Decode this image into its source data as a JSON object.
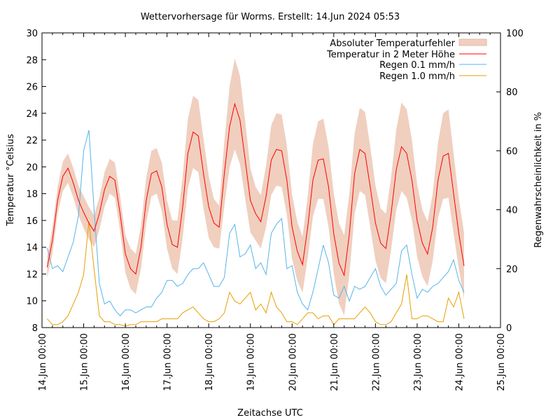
{
  "chart_data": {
    "type": "line",
    "title": "Wettervorhersage für Worms. Erstellt: 14.Jun 2024 05:53",
    "xlabel": "Zeitachse UTC",
    "ylabel": "Temperatur °Celsius",
    "y2label": "Regenwahrscheinlichkeit in %",
    "ylim": [
      8,
      30
    ],
    "y2lim": [
      0,
      100
    ],
    "yticks": [
      "8",
      "10",
      "12",
      "14",
      "16",
      "18",
      "20",
      "22",
      "24",
      "26",
      "28",
      "30"
    ],
    "y2ticks": [
      "0",
      "20",
      "40",
      "60",
      "80",
      "100"
    ],
    "xlim": [
      "2024-06-14T00:00",
      "2024-06-25T00:00"
    ],
    "xticks": [
      "14.Jun 00:00",
      "15.Jun 00:00",
      "16.Jun 00:00",
      "17.Jun 00:00",
      "18.Jun 00:00",
      "19.Jun 00:00",
      "20.Jun 00:00",
      "21.Jun 00:00",
      "22.Jun 00:00",
      "23.Jun 00:00",
      "24.Jun 00:00",
      "25.Jun 00:00"
    ],
    "legend_position": "top-right",
    "grid": false,
    "x": [
      "2024-06-14T03:00",
      "2024-06-14T06:00",
      "2024-06-14T09:00",
      "2024-06-14T12:00",
      "2024-06-14T15:00",
      "2024-06-14T18:00",
      "2024-06-14T21:00",
      "2024-06-15T00:00",
      "2024-06-15T03:00",
      "2024-06-15T06:00",
      "2024-06-15T09:00",
      "2024-06-15T12:00",
      "2024-06-15T15:00",
      "2024-06-15T18:00",
      "2024-06-15T21:00",
      "2024-06-16T00:00",
      "2024-06-16T03:00",
      "2024-06-16T06:00",
      "2024-06-16T09:00",
      "2024-06-16T12:00",
      "2024-06-16T15:00",
      "2024-06-16T18:00",
      "2024-06-16T21:00",
      "2024-06-17T00:00",
      "2024-06-17T03:00",
      "2024-06-17T06:00",
      "2024-06-17T09:00",
      "2024-06-17T12:00",
      "2024-06-17T15:00",
      "2024-06-17T18:00",
      "2024-06-17T21:00",
      "2024-06-18T00:00",
      "2024-06-18T03:00",
      "2024-06-18T06:00",
      "2024-06-18T09:00",
      "2024-06-18T12:00",
      "2024-06-18T15:00",
      "2024-06-18T18:00",
      "2024-06-18T21:00",
      "2024-06-19T00:00",
      "2024-06-19T03:00",
      "2024-06-19T06:00",
      "2024-06-19T09:00",
      "2024-06-19T12:00",
      "2024-06-19T15:00",
      "2024-06-19T18:00",
      "2024-06-19T21:00",
      "2024-06-20T00:00",
      "2024-06-20T03:00",
      "2024-06-20T06:00",
      "2024-06-20T09:00",
      "2024-06-20T12:00",
      "2024-06-20T15:00",
      "2024-06-20T18:00",
      "2024-06-20T21:00",
      "2024-06-21T00:00",
      "2024-06-21T03:00",
      "2024-06-21T06:00",
      "2024-06-21T09:00",
      "2024-06-21T12:00",
      "2024-06-21T15:00",
      "2024-06-21T18:00",
      "2024-06-21T21:00",
      "2024-06-22T00:00",
      "2024-06-22T03:00",
      "2024-06-22T06:00",
      "2024-06-22T09:00",
      "2024-06-22T12:00",
      "2024-06-22T15:00",
      "2024-06-22T18:00",
      "2024-06-22T21:00",
      "2024-06-23T00:00",
      "2024-06-23T03:00",
      "2024-06-23T06:00",
      "2024-06-23T09:00",
      "2024-06-23T12:00",
      "2024-06-23T15:00",
      "2024-06-23T18:00",
      "2024-06-23T21:00",
      "2024-06-24T00:00",
      "2024-06-24T03:00"
    ],
    "series": [
      {
        "name": "Absoluter Temperaturfehler",
        "kind": "band",
        "axis": "y",
        "color": "#f0cfbf",
        "values": [
          0.8,
          1.0,
          1.0,
          1.1,
          1.1,
          1.1,
          1.1,
          1.2,
          1.2,
          1.2,
          1.2,
          1.3,
          1.3,
          1.3,
          1.3,
          1.4,
          1.5,
          1.5,
          1.6,
          1.7,
          1.7,
          1.7,
          1.8,
          1.8,
          1.8,
          2.0,
          2.3,
          2.6,
          2.7,
          2.7,
          2.6,
          2.3,
          1.8,
          1.6,
          2.4,
          3.0,
          3.4,
          3.3,
          2.9,
          2.4,
          2.0,
          2.0,
          2.3,
          2.6,
          2.7,
          2.7,
          2.6,
          2.4,
          2.2,
          2.1,
          2.3,
          2.7,
          2.9,
          3.0,
          3.0,
          3.0,
          3.0,
          3.0,
          3.0,
          3.0,
          3.1,
          3.1,
          3.0,
          2.8,
          2.6,
          2.6,
          2.7,
          3.0,
          3.3,
          3.3,
          3.0,
          2.7,
          2.5,
          2.4,
          2.5,
          2.8,
          3.2,
          3.3,
          3.0,
          2.6,
          2.5
        ]
      },
      {
        "name": "Temperatur in 2 Meter Höhe",
        "axis": "y",
        "color": "#ff0000",
        "values": [
          12.5,
          14.5,
          17.5,
          19.3,
          19.9,
          18.8,
          17.5,
          16.6,
          15.8,
          15.2,
          16.5,
          18.3,
          19.3,
          19.0,
          16.5,
          13.5,
          12.4,
          12.0,
          14.0,
          17.5,
          19.5,
          19.7,
          18.5,
          15.7,
          14.2,
          14.0,
          17.0,
          21.0,
          22.6,
          22.3,
          19.5,
          17.0,
          15.8,
          15.5,
          19.5,
          23.0,
          24.7,
          23.5,
          20.5,
          17.5,
          16.5,
          15.9,
          17.8,
          20.5,
          21.3,
          21.2,
          19.0,
          15.5,
          13.7,
          12.7,
          15.5,
          19.0,
          20.5,
          20.6,
          18.5,
          15.0,
          12.8,
          11.9,
          15.0,
          19.5,
          21.3,
          21.0,
          18.5,
          15.8,
          14.3,
          13.9,
          16.5,
          19.8,
          21.5,
          21.0,
          19.0,
          16.0,
          14.3,
          13.5,
          15.5,
          19.0,
          20.8,
          21.0,
          18.0,
          15.0,
          12.6
        ]
      },
      {
        "name": "Regen 0.1 mm/h",
        "axis": "y2",
        "color": "#56b4e9",
        "values": [
          27,
          20,
          21,
          19,
          24,
          29,
          38,
          60,
          67,
          40,
          15,
          8,
          9,
          6,
          4,
          6,
          6,
          5,
          6,
          7,
          7,
          10,
          12,
          16,
          16,
          14,
          15,
          18,
          20,
          20,
          22,
          18,
          14,
          14,
          17,
          32,
          35,
          24,
          25,
          28,
          20,
          22,
          18,
          32,
          35,
          37,
          20,
          21,
          12,
          8,
          6,
          12,
          20,
          28,
          22,
          11,
          10,
          14,
          9,
          14,
          13,
          14,
          17,
          20,
          14,
          11,
          13,
          15,
          26,
          28,
          18,
          10,
          13,
          12,
          14,
          15,
          17,
          19,
          23,
          16,
          12
        ]
      },
      {
        "name": "Regen 1.0 mm/h",
        "axis": "y2",
        "color": "#e69f00",
        "values": [
          3,
          1,
          1,
          2,
          4,
          8,
          12,
          18,
          36,
          20,
          4,
          2,
          2,
          1,
          1,
          0.5,
          1,
          1,
          2,
          2,
          2,
          2,
          3,
          3,
          3,
          3,
          5,
          6,
          7,
          5,
          3,
          2,
          2,
          3,
          5,
          12,
          9,
          8,
          10,
          12,
          6,
          8,
          5,
          12,
          7,
          5,
          2,
          2,
          1,
          3,
          5,
          5,
          3,
          4,
          4,
          1,
          3,
          3,
          3,
          3,
          5,
          7,
          5,
          2,
          1,
          1,
          2,
          5,
          8,
          18,
          3,
          3,
          4,
          4,
          3,
          2,
          2,
          10,
          7,
          12,
          3
        ]
      }
    ]
  }
}
